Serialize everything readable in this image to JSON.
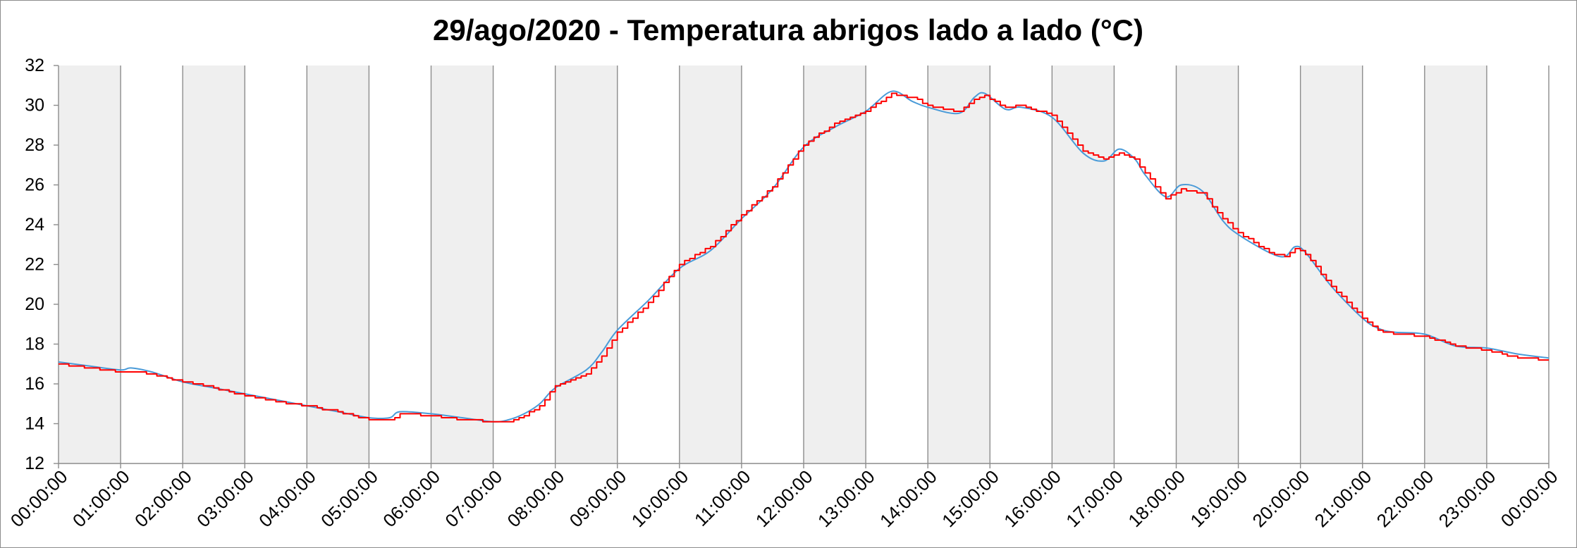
{
  "chart_data": {
    "type": "line",
    "title": "29/ago/2020 - Temperatura abrigos lado a lado (°C)",
    "x_ticks": [
      "00:00:00",
      "01:00:00",
      "02:00:00",
      "03:00:00",
      "04:00:00",
      "05:00:00",
      "06:00:00",
      "07:00:00",
      "08:00:00",
      "09:00:00",
      "10:00:00",
      "11:00:00",
      "12:00:00",
      "13:00:00",
      "14:00:00",
      "15:00:00",
      "16:00:00",
      "17:00:00",
      "18:00:00",
      "19:00:00",
      "20:00:00",
      "21:00:00",
      "22:00:00",
      "23:00:00",
      "00:00:00"
    ],
    "y_ticks": [
      12,
      14,
      16,
      18,
      20,
      22,
      24,
      26,
      28,
      30,
      32
    ],
    "ylim": [
      12,
      32
    ],
    "grid_x": true,
    "grid_y": false,
    "shaded_bands": true,
    "band_color": "#EFEFEF",
    "x": [
      "00:00:00",
      "00:30:00",
      "01:00:00",
      "01:10:00",
      "01:30:00",
      "02:00:00",
      "02:30:00",
      "03:00:00",
      "03:30:00",
      "04:00:00",
      "04:30:00",
      "05:00:00",
      "05:20:00",
      "05:30:00",
      "06:00:00",
      "06:30:00",
      "07:00:00",
      "07:15:00",
      "07:30:00",
      "07:45:00",
      "08:00:00",
      "08:30:00",
      "08:45:00",
      "09:00:00",
      "09:30:00",
      "10:00:00",
      "10:30:00",
      "11:00:00",
      "11:30:00",
      "12:00:00",
      "12:30:00",
      "13:00:00",
      "13:25:00",
      "13:45:00",
      "14:00:00",
      "14:30:00",
      "14:45:00",
      "14:55:00",
      "15:15:00",
      "15:30:00",
      "16:00:00",
      "16:30:00",
      "16:50:00",
      "17:05:00",
      "17:20:00",
      "17:30:00",
      "17:50:00",
      "18:05:00",
      "18:25:00",
      "18:45:00",
      "19:00:00",
      "19:30:00",
      "19:45:00",
      "19:55:00",
      "20:05:00",
      "20:30:00",
      "21:00:00",
      "21:15:00",
      "21:30:00",
      "22:00:00",
      "22:30:00",
      "23:00:00",
      "23:30:00",
      "00:00:00"
    ],
    "series": [
      {
        "color": "#4A9BD8",
        "step": false,
        "values": [
          17.1,
          16.9,
          16.7,
          16.8,
          16.6,
          16.1,
          15.8,
          15.5,
          15.2,
          14.9,
          14.6,
          14.3,
          14.3,
          14.6,
          14.5,
          14.3,
          14.1,
          14.2,
          14.5,
          15.0,
          15.8,
          16.7,
          17.6,
          18.7,
          20.2,
          21.8,
          22.7,
          24.3,
          25.8,
          27.9,
          28.9,
          29.7,
          30.7,
          30.2,
          29.9,
          29.6,
          30.4,
          30.6,
          29.8,
          29.9,
          29.4,
          27.6,
          27.2,
          27.8,
          27.3,
          26.5,
          25.4,
          26.0,
          25.7,
          24.2,
          23.5,
          22.6,
          22.4,
          22.9,
          22.6,
          20.9,
          19.3,
          18.8,
          18.6,
          18.5,
          17.9,
          17.8,
          17.5,
          17.3
        ]
      },
      {
        "color": "#FF0000",
        "step": true,
        "values": [
          17.0,
          16.8,
          16.6,
          16.6,
          16.5,
          16.1,
          15.8,
          15.4,
          15.1,
          14.9,
          14.6,
          14.2,
          14.2,
          14.5,
          14.4,
          14.2,
          14.1,
          14.1,
          14.4,
          14.9,
          15.9,
          16.5,
          17.4,
          18.6,
          20.1,
          22.0,
          22.9,
          24.5,
          25.9,
          28.0,
          29.1,
          29.7,
          30.6,
          30.4,
          30.0,
          29.7,
          30.3,
          30.5,
          29.9,
          30.0,
          29.5,
          27.7,
          27.3,
          27.6,
          27.3,
          26.6,
          25.3,
          25.8,
          25.6,
          24.3,
          23.6,
          22.6,
          22.4,
          22.8,
          22.5,
          20.9,
          19.3,
          18.7,
          18.5,
          18.4,
          17.9,
          17.7,
          17.3,
          17.2
        ]
      }
    ]
  }
}
